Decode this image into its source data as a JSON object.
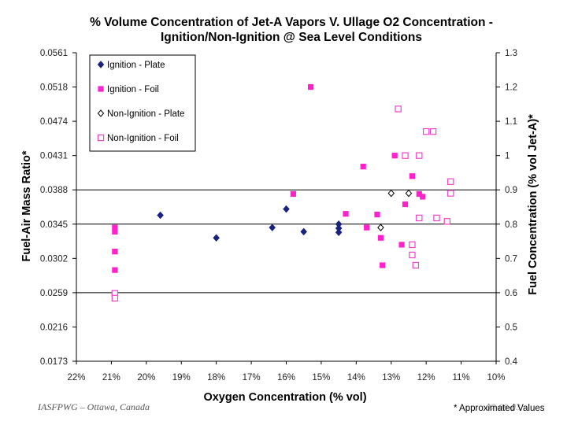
{
  "chart_data": {
    "type": "scatter",
    "title": "% Volume Concentration of Jet-A Vapors V. Ullage O2 Concentration - Ignition/Non-Ignition @ Sea Level Conditions",
    "title_line1": "% Volume Concentration of Jet-A Vapors V. Ullage O2 Concentration -",
    "title_line2": "Ignition/Non-Ignition @ Sea Level Conditions",
    "xlabel": "Oxygen Concentration (% vol)",
    "ylabel_left": "Fuel-Air Mass Ratio*",
    "ylabel_right": "Fuel Concentration (% vol Jet-A)*",
    "xlim": [
      22,
      10
    ],
    "x_ticks": [
      "22%",
      "21%",
      "20%",
      "19%",
      "18%",
      "17%",
      "16%",
      "15%",
      "14%",
      "13%",
      "12%",
      "11%",
      "10%"
    ],
    "ylim_right": [
      0.4,
      1.3
    ],
    "y_right_ticks": [
      "1.3",
      "1.2",
      "1.1",
      "1",
      "0.9",
      "0.8",
      "0.7",
      "0.6",
      "0.5",
      "0.4"
    ],
    "y_left_ticks": [
      "0.0561",
      "0.0518",
      "0.0474",
      "0.0431",
      "0.0388",
      "0.0345",
      "0.0302",
      "0.0259",
      "0.0216",
      "0.0173"
    ],
    "gridlines": [
      0.9,
      0.8,
      0.6
    ],
    "legend_position": "top-left",
    "series": [
      {
        "name": "Ignition - Plate",
        "marker": "filled-diamond",
        "color": "#1a237e",
        "points": [
          [
            19.6,
            0.826
          ],
          [
            18.0,
            0.76
          ],
          [
            16.4,
            0.79
          ],
          [
            16.0,
            0.844
          ],
          [
            15.5,
            0.778
          ],
          [
            14.5,
            0.8
          ],
          [
            14.5,
            0.788
          ],
          [
            14.5,
            0.776
          ]
        ]
      },
      {
        "name": "Ignition - Foil",
        "marker": "filled-square",
        "color": "#ff22cc",
        "points": [
          [
            20.9,
            0.79
          ],
          [
            20.9,
            0.778
          ],
          [
            20.9,
            0.72
          ],
          [
            20.9,
            0.666
          ],
          [
            15.3,
            1.2
          ],
          [
            15.8,
            0.888
          ],
          [
            14.3,
            0.83
          ],
          [
            13.8,
            0.968
          ],
          [
            13.7,
            0.79
          ],
          [
            13.4,
            0.828
          ],
          [
            13.3,
            0.76
          ],
          [
            13.25,
            0.68
          ],
          [
            12.9,
            1.0
          ],
          [
            12.7,
            0.74
          ],
          [
            12.6,
            0.858
          ],
          [
            12.4,
            0.94
          ],
          [
            12.2,
            0.888
          ],
          [
            12.1,
            0.88
          ]
        ]
      },
      {
        "name": "Non-Ignition - Plate",
        "marker": "open-diamond",
        "color": "#000000",
        "points": [
          [
            13.0,
            0.89
          ],
          [
            12.5,
            0.89
          ],
          [
            13.3,
            0.79
          ]
        ]
      },
      {
        "name": "Non-Ignition - Foil",
        "marker": "open-square",
        "color": "#ee44cc",
        "points": [
          [
            20.9,
            0.598
          ],
          [
            20.9,
            0.584
          ],
          [
            12.8,
            1.136
          ],
          [
            12.0,
            1.07
          ],
          [
            11.8,
            1.07
          ],
          [
            12.6,
            1.0
          ],
          [
            12.2,
            1.0
          ],
          [
            11.3,
            0.924
          ],
          [
            11.3,
            0.89
          ],
          [
            12.2,
            0.818
          ],
          [
            11.7,
            0.818
          ],
          [
            11.4,
            0.808
          ],
          [
            12.4,
            0.74
          ],
          [
            12.4,
            0.71
          ],
          [
            12.3,
            0.68
          ]
        ]
      }
    ]
  },
  "footer": {
    "left": "IASFPWG – Ottawa, Canada",
    "date": "07-08-03",
    "note": "* Approximated Values"
  }
}
